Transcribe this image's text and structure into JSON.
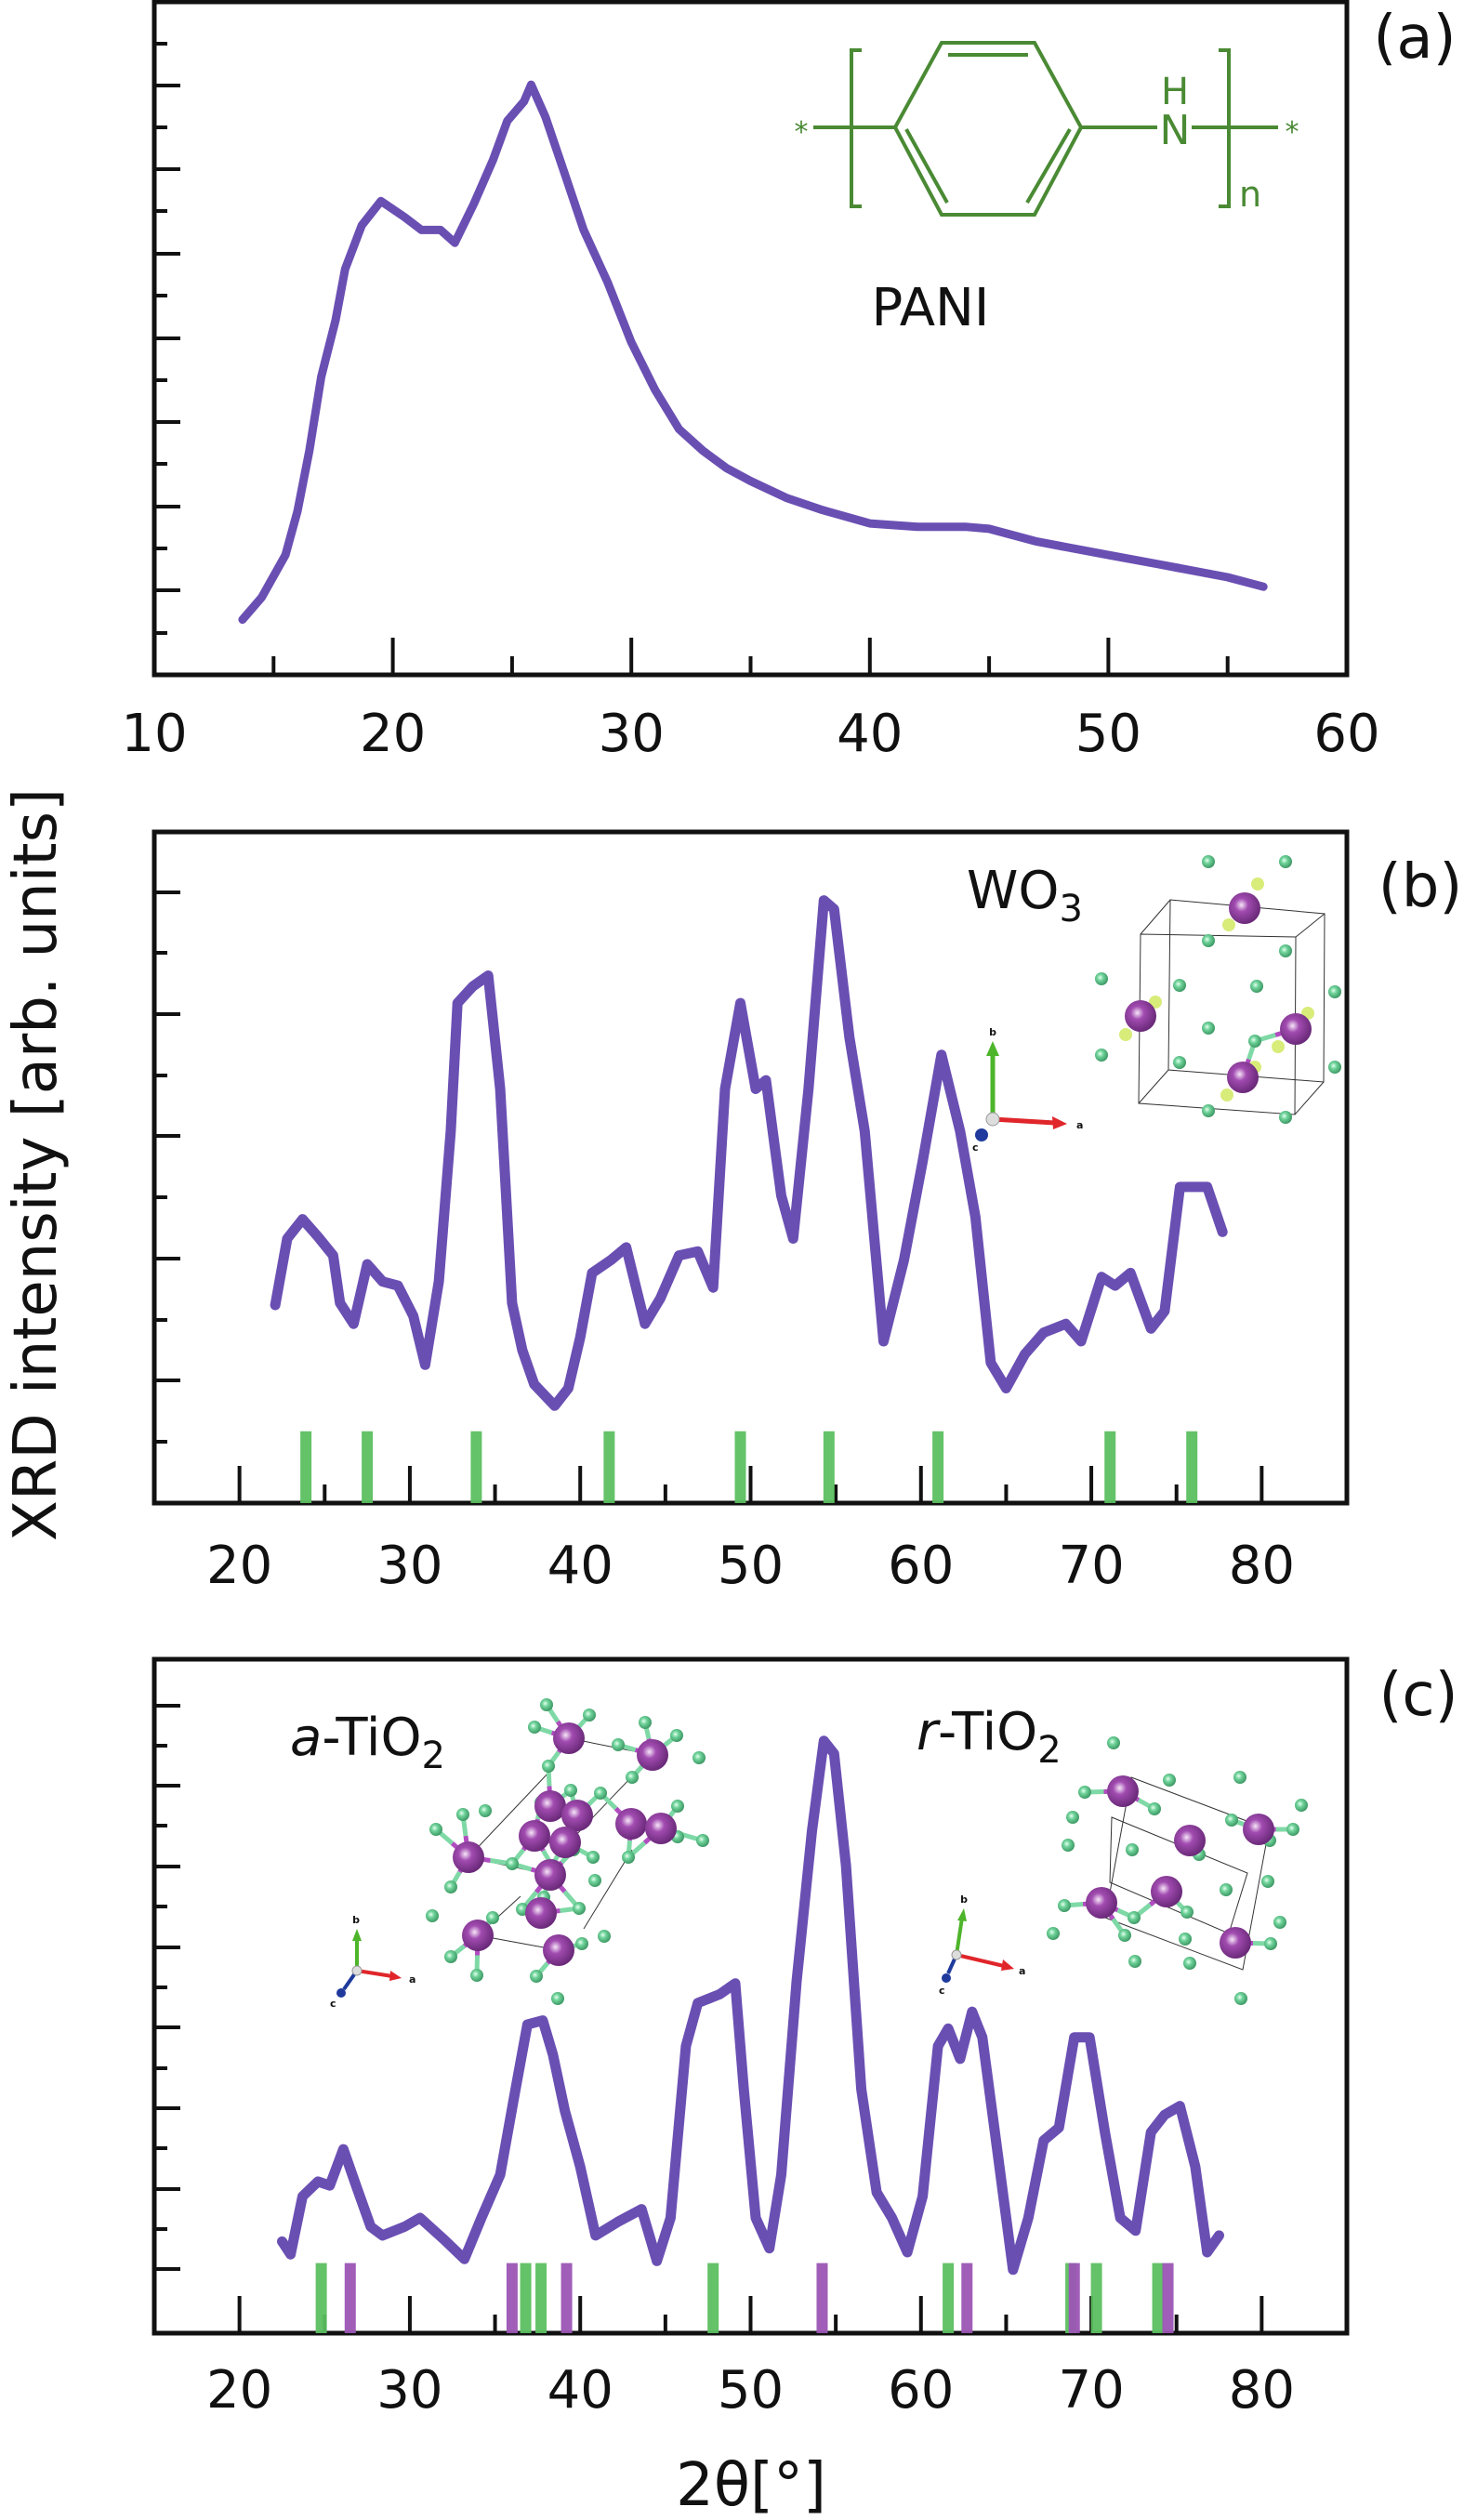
{
  "figure": {
    "y_axis_title": "XRD intensity [arb. units]",
    "x_axis_title": "2θ[°]"
  },
  "colors": {
    "curve": "#6a4fb3",
    "stick_green": "#5cbf60",
    "stick_purple": "#9b55b5",
    "structure_green": "#4a8a34",
    "frame": "#111111",
    "atom_purple": "#a14bb0",
    "atom_green": "#6fd39a",
    "atom_yellow": "#d8ec7a",
    "axis_a": "#e0262a",
    "axis_b": "#4db52a",
    "axis_c": "#1f3a9c"
  },
  "chart_data": [
    {
      "type": "line",
      "panel": "(a)",
      "title": "",
      "inset_label": "PANI",
      "xlabel": "",
      "ylabel": "XRD intensity [arb. units]",
      "xlim": [
        10,
        60
      ],
      "ylim": [
        0,
        100
      ],
      "xticks": [
        10,
        20,
        30,
        40,
        50,
        60
      ],
      "grid": false,
      "structure": {
        "name": "PANI",
        "left_end": "*",
        "right_end": "*",
        "heteroatom": "N",
        "hydrogen": "H",
        "repeat": "n"
      },
      "series": [
        {
          "name": "PANI",
          "x": [
            13.7,
            14.5,
            15.5,
            16.0,
            16.5,
            17.0,
            17.6,
            18.0,
            18.7,
            19.5,
            20.5,
            21.2,
            22.0,
            22.6,
            23.4,
            24.2,
            24.8,
            25.5,
            25.8,
            26.4,
            27.2,
            28.0,
            29.0,
            30.0,
            31.0,
            32.0,
            33.0,
            34.0,
            35.0,
            36.5,
            38.0,
            40.0,
            42.0,
            44.0,
            45.0,
            47.0,
            50.0,
            52.0,
            55.0,
            56.5
          ],
          "y": [
            8.2,
            11.5,
            17.8,
            24.3,
            33.3,
            44.3,
            52.7,
            60.3,
            66.8,
            70.4,
            68.0,
            66.1,
            66.1,
            64.2,
            70.0,
            76.5,
            82.3,
            85.2,
            87.7,
            82.9,
            74.5,
            66.1,
            58.4,
            49.4,
            42.3,
            36.5,
            33.3,
            30.7,
            28.8,
            26.3,
            24.5,
            22.5,
            22.0,
            22.0,
            21.7,
            19.8,
            17.8,
            16.5,
            14.5,
            13.1
          ]
        }
      ]
    },
    {
      "type": "line",
      "panel": "(b)",
      "title": "",
      "inset_label": "WO3",
      "inset_label_main": "WO",
      "inset_label_sub": "3",
      "xlabel": "",
      "ylabel": "XRD intensity [arb. units]",
      "xlim": [
        15,
        85
      ],
      "ylim": [
        0,
        100
      ],
      "xticks": [
        20,
        30,
        40,
        50,
        60,
        70,
        80
      ],
      "grid": false,
      "axis_indicator": [
        "a",
        "b",
        "c"
      ],
      "series": [
        {
          "name": "WO3",
          "x": [
            22.1,
            22.8,
            23.7,
            24.6,
            25.5,
            25.9,
            26.7,
            27.5,
            28.4,
            29.3,
            30.2,
            30.9,
            31.7,
            32.4,
            32.8,
            33.7,
            34.6,
            35.3,
            36.0,
            36.6,
            37.3,
            38.5,
            39.3,
            40.0,
            40.7,
            41.8,
            42.7,
            43.8,
            44.7,
            45.8,
            46.9,
            47.8,
            48.5,
            49.4,
            50.3,
            50.9,
            51.8,
            52.5,
            53.4,
            54.3,
            54.9,
            55.8,
            56.7,
            57.8,
            59.0,
            60.1,
            61.2,
            62.3,
            63.2,
            64.1,
            65.0,
            66.1,
            67.2,
            68.5,
            69.4,
            70.6,
            71.4,
            72.3,
            73.5,
            74.3,
            75.2,
            76.1,
            76.8,
            77.7
          ],
          "y": [
            29.5,
            39.4,
            42.3,
            39.7,
            36.9,
            29.8,
            26.7,
            35.6,
            33.0,
            32.4,
            27.9,
            20.6,
            33.0,
            55.4,
            74.5,
            77.0,
            78.6,
            61.7,
            29.8,
            22.8,
            17.7,
            14.5,
            17.1,
            24.7,
            34.3,
            36.2,
            38.1,
            26.7,
            30.5,
            36.9,
            37.5,
            32.1,
            61.7,
            74.5,
            61.7,
            63.0,
            45.8,
            39.4,
            61.7,
            89.8,
            88.5,
            69.4,
            55.4,
            24.1,
            36.2,
            50.9,
            66.8,
            55.4,
            42.6,
            20.9,
            17.1,
            22.2,
            25.4,
            26.7,
            24.1,
            33.7,
            32.4,
            34.3,
            26.0,
            28.6,
            47.1,
            47.1,
            47.1,
            40.4
          ]
        }
      ],
      "reference_sticks": [
        {
          "name": "WO3 reference",
          "color": "green",
          "height": 10.7,
          "positions": [
            23.9,
            27.5,
            33.9,
            41.7,
            49.4,
            54.6,
            61.0,
            71.1,
            75.9
          ]
        }
      ]
    },
    {
      "type": "line",
      "panel": "(c)",
      "title": "",
      "inset_labels": [
        {
          "italic": "a",
          "rest": "-TiO",
          "sub": "2",
          "full": "a-TiO2"
        },
        {
          "italic": "r",
          "rest": "-TiO",
          "sub": "2",
          "full": "r-TiO2"
        }
      ],
      "xlabel": "2θ[°]",
      "ylabel": "XRD intensity [arb. units]",
      "xlim": [
        15,
        85
      ],
      "ylim": [
        0,
        100
      ],
      "xticks": [
        20,
        30,
        40,
        50,
        60,
        70,
        80
      ],
      "grid": false,
      "axis_indicator": [
        "a",
        "b",
        "c"
      ],
      "series": [
        {
          "name": "TiO2",
          "x": [
            22.5,
            23.0,
            23.7,
            24.6,
            25.3,
            26.1,
            26.8,
            27.7,
            28.4,
            29.7,
            30.6,
            32.0,
            33.2,
            34.2,
            35.3,
            36.2,
            36.9,
            37.8,
            38.4,
            39.1,
            40.0,
            40.9,
            42.2,
            43.6,
            44.5,
            45.3,
            46.2,
            46.9,
            48.2,
            49.1,
            49.6,
            50.3,
            51.1,
            51.8,
            52.7,
            53.6,
            54.3,
            54.9,
            55.6,
            56.5,
            57.4,
            58.3,
            59.2,
            60.1,
            61.0,
            61.6,
            62.3,
            63.0,
            63.6,
            64.5,
            65.4,
            66.3,
            67.2,
            68.1,
            69.0,
            69.9,
            70.8,
            71.7,
            72.6,
            73.5,
            74.3,
            75.2,
            76.1,
            76.8,
            77.5
          ],
          "y": [
            13.6,
            11.7,
            20.3,
            22.5,
            21.9,
            27.3,
            22.2,
            15.8,
            14.5,
            15.8,
            17.1,
            13.9,
            11.0,
            17.1,
            23.5,
            36.2,
            45.8,
            46.4,
            41.3,
            33.0,
            24.7,
            14.5,
            16.5,
            18.4,
            10.7,
            17.1,
            42.6,
            49.0,
            50.3,
            51.9,
            36.2,
            17.1,
            12.6,
            23.5,
            52.2,
            74.5,
            87.9,
            86.0,
            69.4,
            36.2,
            20.9,
            17.1,
            12.0,
            20.3,
            42.6,
            45.2,
            40.7,
            47.7,
            43.9,
            26.7,
            9.4,
            17.1,
            28.6,
            30.5,
            43.9,
            43.9,
            29.8,
            17.1,
            15.2,
            29.8,
            32.4,
            33.7,
            24.7,
            12.0,
            14.5
          ]
        }
      ],
      "reference_sticks": [
        {
          "name": "anatase TiO2 reference",
          "color": "green",
          "height": 10.4,
          "positions": [
            24.8,
            36.8,
            37.7,
            47.8,
            61.6,
            68.8,
            70.3,
            73.9
          ]
        },
        {
          "name": "rutile TiO2 reference",
          "color": "purple",
          "height": 10.4,
          "positions": [
            26.5,
            36.0,
            39.2,
            54.2,
            62.7,
            69.0,
            74.5
          ]
        }
      ]
    }
  ]
}
